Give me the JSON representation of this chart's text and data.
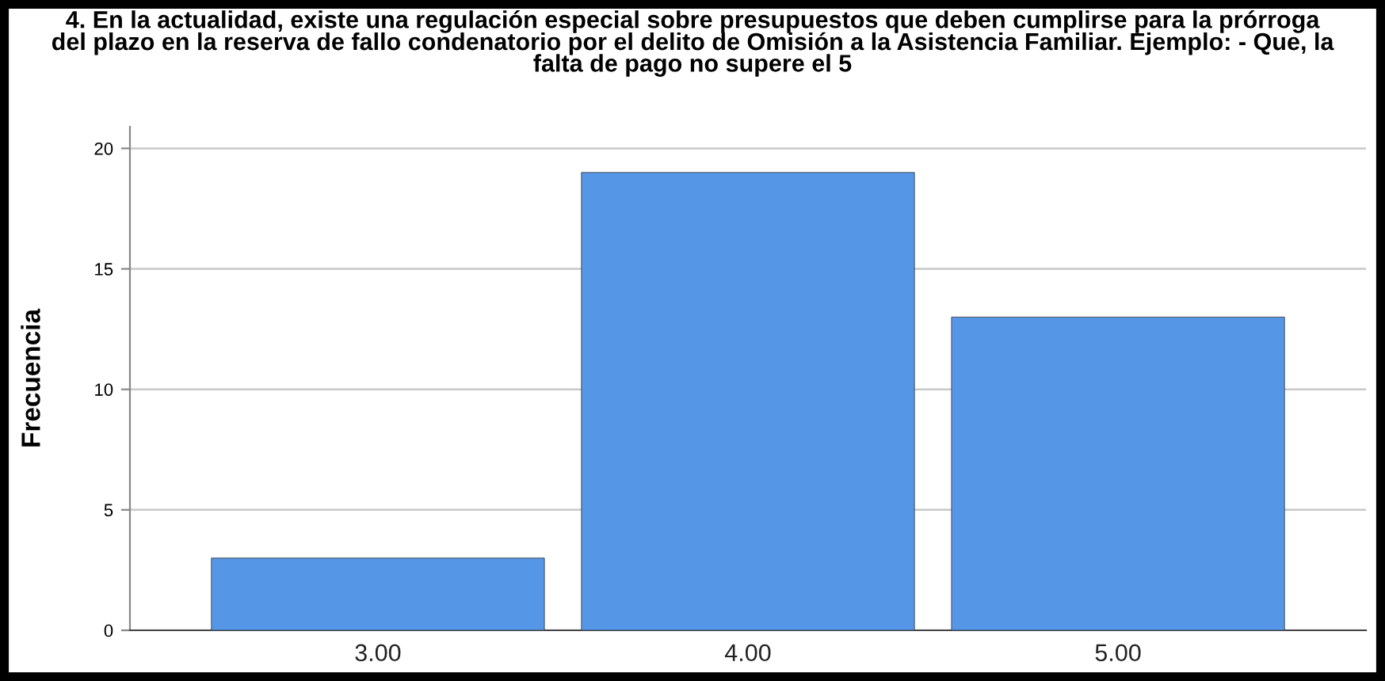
{
  "chart_data": {
    "type": "bar",
    "title": "4. En la actualidad, existe una regulación especial sobre presupuestos que deben cumplirse para la prórroga\ndel plazo en la reserva de fallo condenatorio por el delito de Omisión a la Asistencia Familiar. Ejemplo: - Que, la\nfalta de pago no supere el 5",
    "ylabel": "Frecuencia",
    "categories": [
      "3.00",
      "4.00",
      "5.00"
    ],
    "values": [
      3,
      19,
      13
    ],
    "color": "#5596e6",
    "ylim": [
      0,
      20.9
    ],
    "yticks": [
      0,
      5,
      10,
      15,
      20
    ],
    "grid": "y"
  }
}
